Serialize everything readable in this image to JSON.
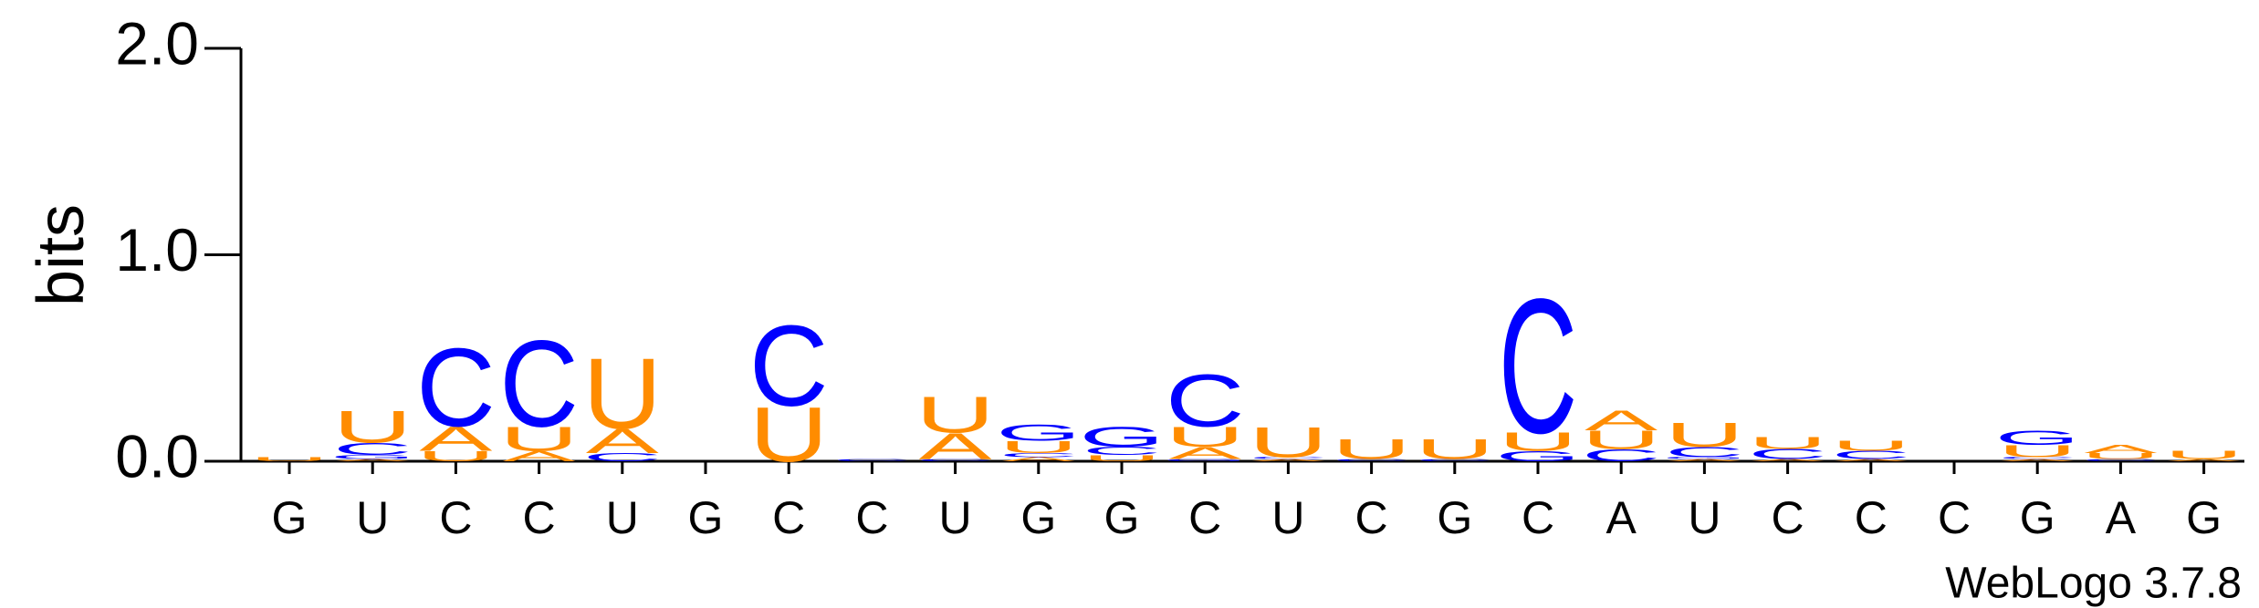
{
  "chart_data": {
    "type": "logo",
    "ylabel": "bits",
    "footer": "WebLogo 3.7.8",
    "categories": [
      "G",
      "U",
      "C",
      "C",
      "U",
      "G",
      "C",
      "C",
      "U",
      "G",
      "G",
      "C",
      "U",
      "C",
      "G",
      "C",
      "A",
      "U",
      "C",
      "C",
      "C",
      "G",
      "A",
      "G"
    ],
    "series": [
      {
        "name": "A",
        "color": "#ff8c00",
        "values": [
          0,
          0.01,
          0.12,
          0.05,
          0.12,
          0,
          0,
          0,
          0.13,
          0.02,
          0,
          0.06,
          0.01,
          0,
          0,
          0,
          0.1,
          0.01,
          0.01,
          0.01,
          0,
          0.01,
          0.04,
          0.01
        ]
      },
      {
        "name": "C",
        "color": "#0000ff",
        "values": [
          0,
          0.06,
          0.39,
          0.43,
          0.04,
          0,
          0.4,
          0.01,
          0.01,
          0.02,
          0.04,
          0.26,
          0.01,
          0.01,
          0.01,
          0.67,
          0.06,
          0.05,
          0.05,
          0.04,
          0,
          0.01,
          0.01,
          0
        ]
      },
      {
        "name": "G",
        "color": "#0000ff",
        "values": [
          0,
          0.02,
          0,
          0,
          0,
          0,
          0,
          0,
          0,
          0.08,
          0.1,
          0.01,
          0,
          0,
          0,
          0.05,
          0,
          0.01,
          0,
          0,
          0,
          0.07,
          0,
          0
        ]
      },
      {
        "name": "U",
        "color": "#ff8c00",
        "values": [
          0.02,
          0.16,
          0.05,
          0.12,
          0.35,
          0,
          0.27,
          0,
          0.18,
          0.06,
          0.03,
          0.1,
          0.15,
          0.1,
          0.1,
          0.09,
          0.09,
          0.12,
          0.06,
          0.05,
          0,
          0.06,
          0.03,
          0.04
        ]
      }
    ],
    "ylim": [
      0,
      2
    ],
    "yticks": [
      {
        "value": 0,
        "label": "0.0"
      },
      {
        "value": 1,
        "label": "1.0"
      },
      {
        "value": 2,
        "label": "2.0"
      }
    ]
  }
}
